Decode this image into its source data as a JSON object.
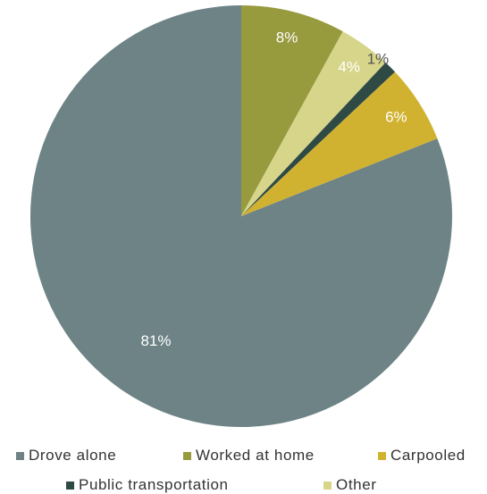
{
  "chart_data": {
    "type": "pie",
    "title": "",
    "slices": [
      {
        "label": "Worked at home",
        "value": 8,
        "display": "8%",
        "color": "#989a3e"
      },
      {
        "label": "Other",
        "value": 4,
        "display": "4%",
        "color": "#d6d58a"
      },
      {
        "label": "Public transportation",
        "value": 1,
        "display": "1%",
        "color": "#2f4a45"
      },
      {
        "label": "Carpooled",
        "value": 6,
        "display": "6%",
        "color": "#d1b230"
      },
      {
        "label": "Drove alone",
        "value": 81,
        "display": "81%",
        "color": "#6e8386"
      }
    ],
    "legend": {
      "placement": "bottom",
      "items": [
        {
          "label": "Drove alone",
          "color": "#6e8386"
        },
        {
          "label": "Worked at home",
          "color": "#989a3e"
        },
        {
          "label": "Carpooled",
          "color": "#d1b230"
        },
        {
          "label": "Public transportation",
          "color": "#2f4a45"
        },
        {
          "label": "Other",
          "color": "#d6d58a"
        }
      ]
    }
  }
}
